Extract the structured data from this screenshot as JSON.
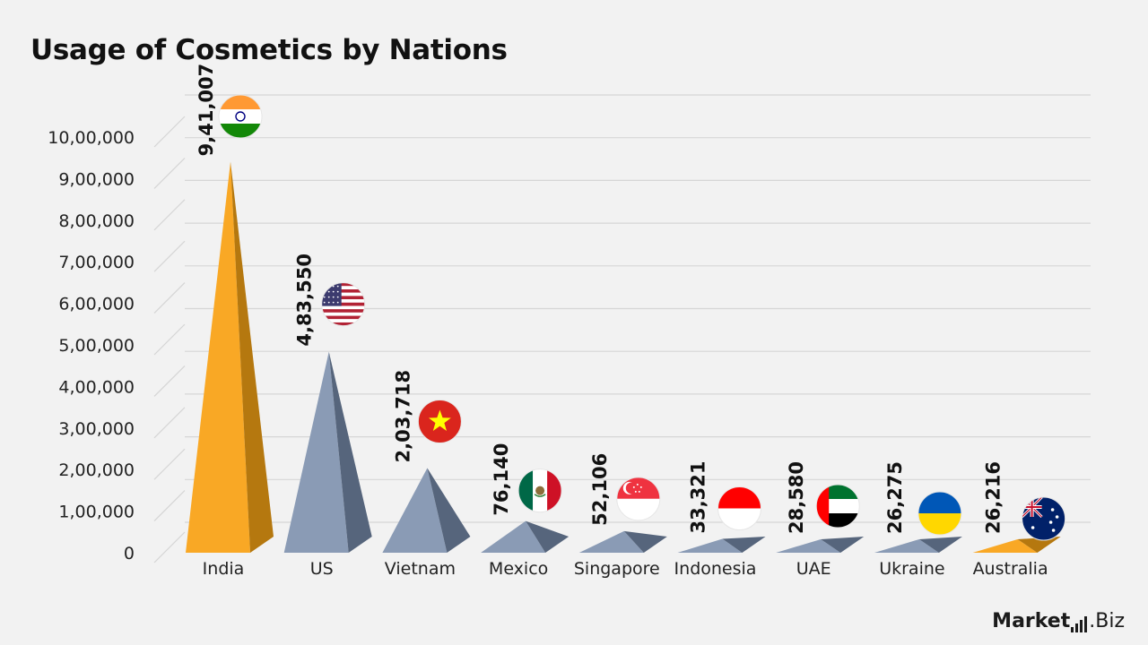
{
  "title": "Usage of Cosmetics by Nations",
  "brand": {
    "main": "Market",
    "suffix": ".Biz"
  },
  "chart_data": {
    "type": "bar",
    "title": "Usage of Cosmetics by Nations",
    "xlabel": "",
    "ylabel": "",
    "ylim": [
      0,
      1000000
    ],
    "yticks": [
      0,
      100000,
      200000,
      300000,
      400000,
      500000,
      600000,
      700000,
      800000,
      900000,
      1000000
    ],
    "ytick_labels": [
      "0",
      "1,00,000",
      "2,00,000",
      "3,00,000",
      "4,00,000",
      "5,00,000",
      "6,00,000",
      "7,00,000",
      "8,00,000",
      "9,00,000",
      "10,00,000"
    ],
    "grid": true,
    "categories": [
      "India",
      "US",
      "Vietnam",
      "Mexico",
      "Singapore",
      "Indonesia",
      "UAE",
      "Ukraine",
      "Australia"
    ],
    "values": [
      941007,
      483550,
      203718,
      76140,
      52106,
      33321,
      28580,
      26275,
      26216
    ],
    "value_labels": [
      "9,41,007",
      "4,83,550",
      "2,03,718",
      "76,140",
      "52,106",
      "33,321",
      "28,580",
      "26,275",
      "26,216"
    ],
    "flags": [
      "india-flag",
      "us-flag",
      "vietnam-flag",
      "mexico-flag",
      "singapore-flag",
      "indonesia-flag",
      "uae-flag",
      "ukraine-flag",
      "australia-flag"
    ],
    "colors": {
      "highlight": "#f9a825",
      "highlight_dark": "#b5780f",
      "bar": "#8a9bb5",
      "bar_dark": "#56657c",
      "grid": "#d6d6d6"
    },
    "highlighted": [
      "India",
      "Australia"
    ]
  }
}
